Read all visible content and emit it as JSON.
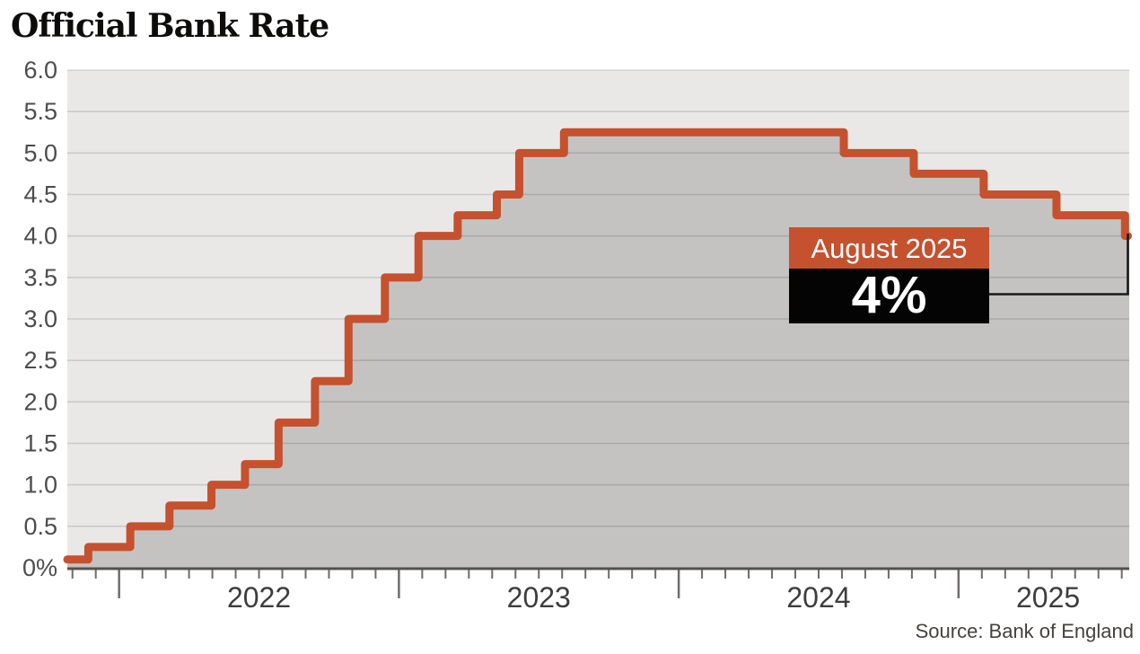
{
  "chart_data": {
    "type": "area",
    "title": "Official Bank Rate",
    "source": "Source: Bank of England",
    "xlabel": "",
    "ylabel": "",
    "ylim": [
      0,
      6
    ],
    "xlim_years": [
      2021.815,
      2025.61
    ],
    "grid": "on",
    "legend": "none",
    "y_ticks": [
      {
        "value": 6.0,
        "label": "6.0"
      },
      {
        "value": 5.5,
        "label": "5.5"
      },
      {
        "value": 5.0,
        "label": "5.0"
      },
      {
        "value": 4.5,
        "label": "4.5"
      },
      {
        "value": 4.0,
        "label": "4.0"
      },
      {
        "value": 3.5,
        "label": "3.5"
      },
      {
        "value": 3.0,
        "label": "3.0"
      },
      {
        "value": 2.5,
        "label": "2.5"
      },
      {
        "value": 2.0,
        "label": "2.0"
      },
      {
        "value": 1.5,
        "label": "1.5"
      },
      {
        "value": 1.0,
        "label": "1.0"
      },
      {
        "value": 0.5,
        "label": "0.5"
      },
      {
        "value": 0.0,
        "label": "0%"
      }
    ],
    "x_year_labels": [
      {
        "t": 2022.5,
        "label": "2022"
      },
      {
        "t": 2023.5,
        "label": "2023"
      },
      {
        "t": 2024.5,
        "label": "2024"
      },
      {
        "t": 2025.32,
        "label": "2025"
      }
    ],
    "series": [
      {
        "name": "Official Bank Rate (%)",
        "steps": [
          {
            "t": 2021.815,
            "rate": 0.1
          },
          {
            "t": 2021.89,
            "rate": 0.25
          },
          {
            "t": 2022.04,
            "rate": 0.5
          },
          {
            "t": 2022.18,
            "rate": 0.75
          },
          {
            "t": 2022.33,
            "rate": 1.0
          },
          {
            "t": 2022.45,
            "rate": 1.25
          },
          {
            "t": 2022.57,
            "rate": 1.75
          },
          {
            "t": 2022.7,
            "rate": 2.25
          },
          {
            "t": 2022.82,
            "rate": 3.0
          },
          {
            "t": 2022.95,
            "rate": 3.5
          },
          {
            "t": 2023.07,
            "rate": 4.0
          },
          {
            "t": 2023.21,
            "rate": 4.25
          },
          {
            "t": 2023.35,
            "rate": 4.5
          },
          {
            "t": 2023.43,
            "rate": 5.0
          },
          {
            "t": 2023.59,
            "rate": 5.25
          },
          {
            "t": 2024.59,
            "rate": 5.0
          },
          {
            "t": 2024.84,
            "rate": 4.75
          },
          {
            "t": 2025.09,
            "rate": 4.5
          },
          {
            "t": 2025.35,
            "rate": 4.25
          },
          {
            "t": 2025.595,
            "rate": 4.0
          }
        ]
      }
    ],
    "annotation": {
      "label": "August 2025",
      "value": "4%"
    },
    "colors": {
      "line": "#c5512e",
      "area_fill": "#c4c3c2",
      "plot_background": "#e9e8e7",
      "gridline": "rgba(0,0,0,0.13)",
      "axis_line": "#54504d",
      "tick": "#6f6b69",
      "annotation_label_bg": "#c5512e",
      "annotation_value_bg": "#040404",
      "annotation_text": "#ffffff",
      "connector": "#1a1a1a"
    }
  }
}
